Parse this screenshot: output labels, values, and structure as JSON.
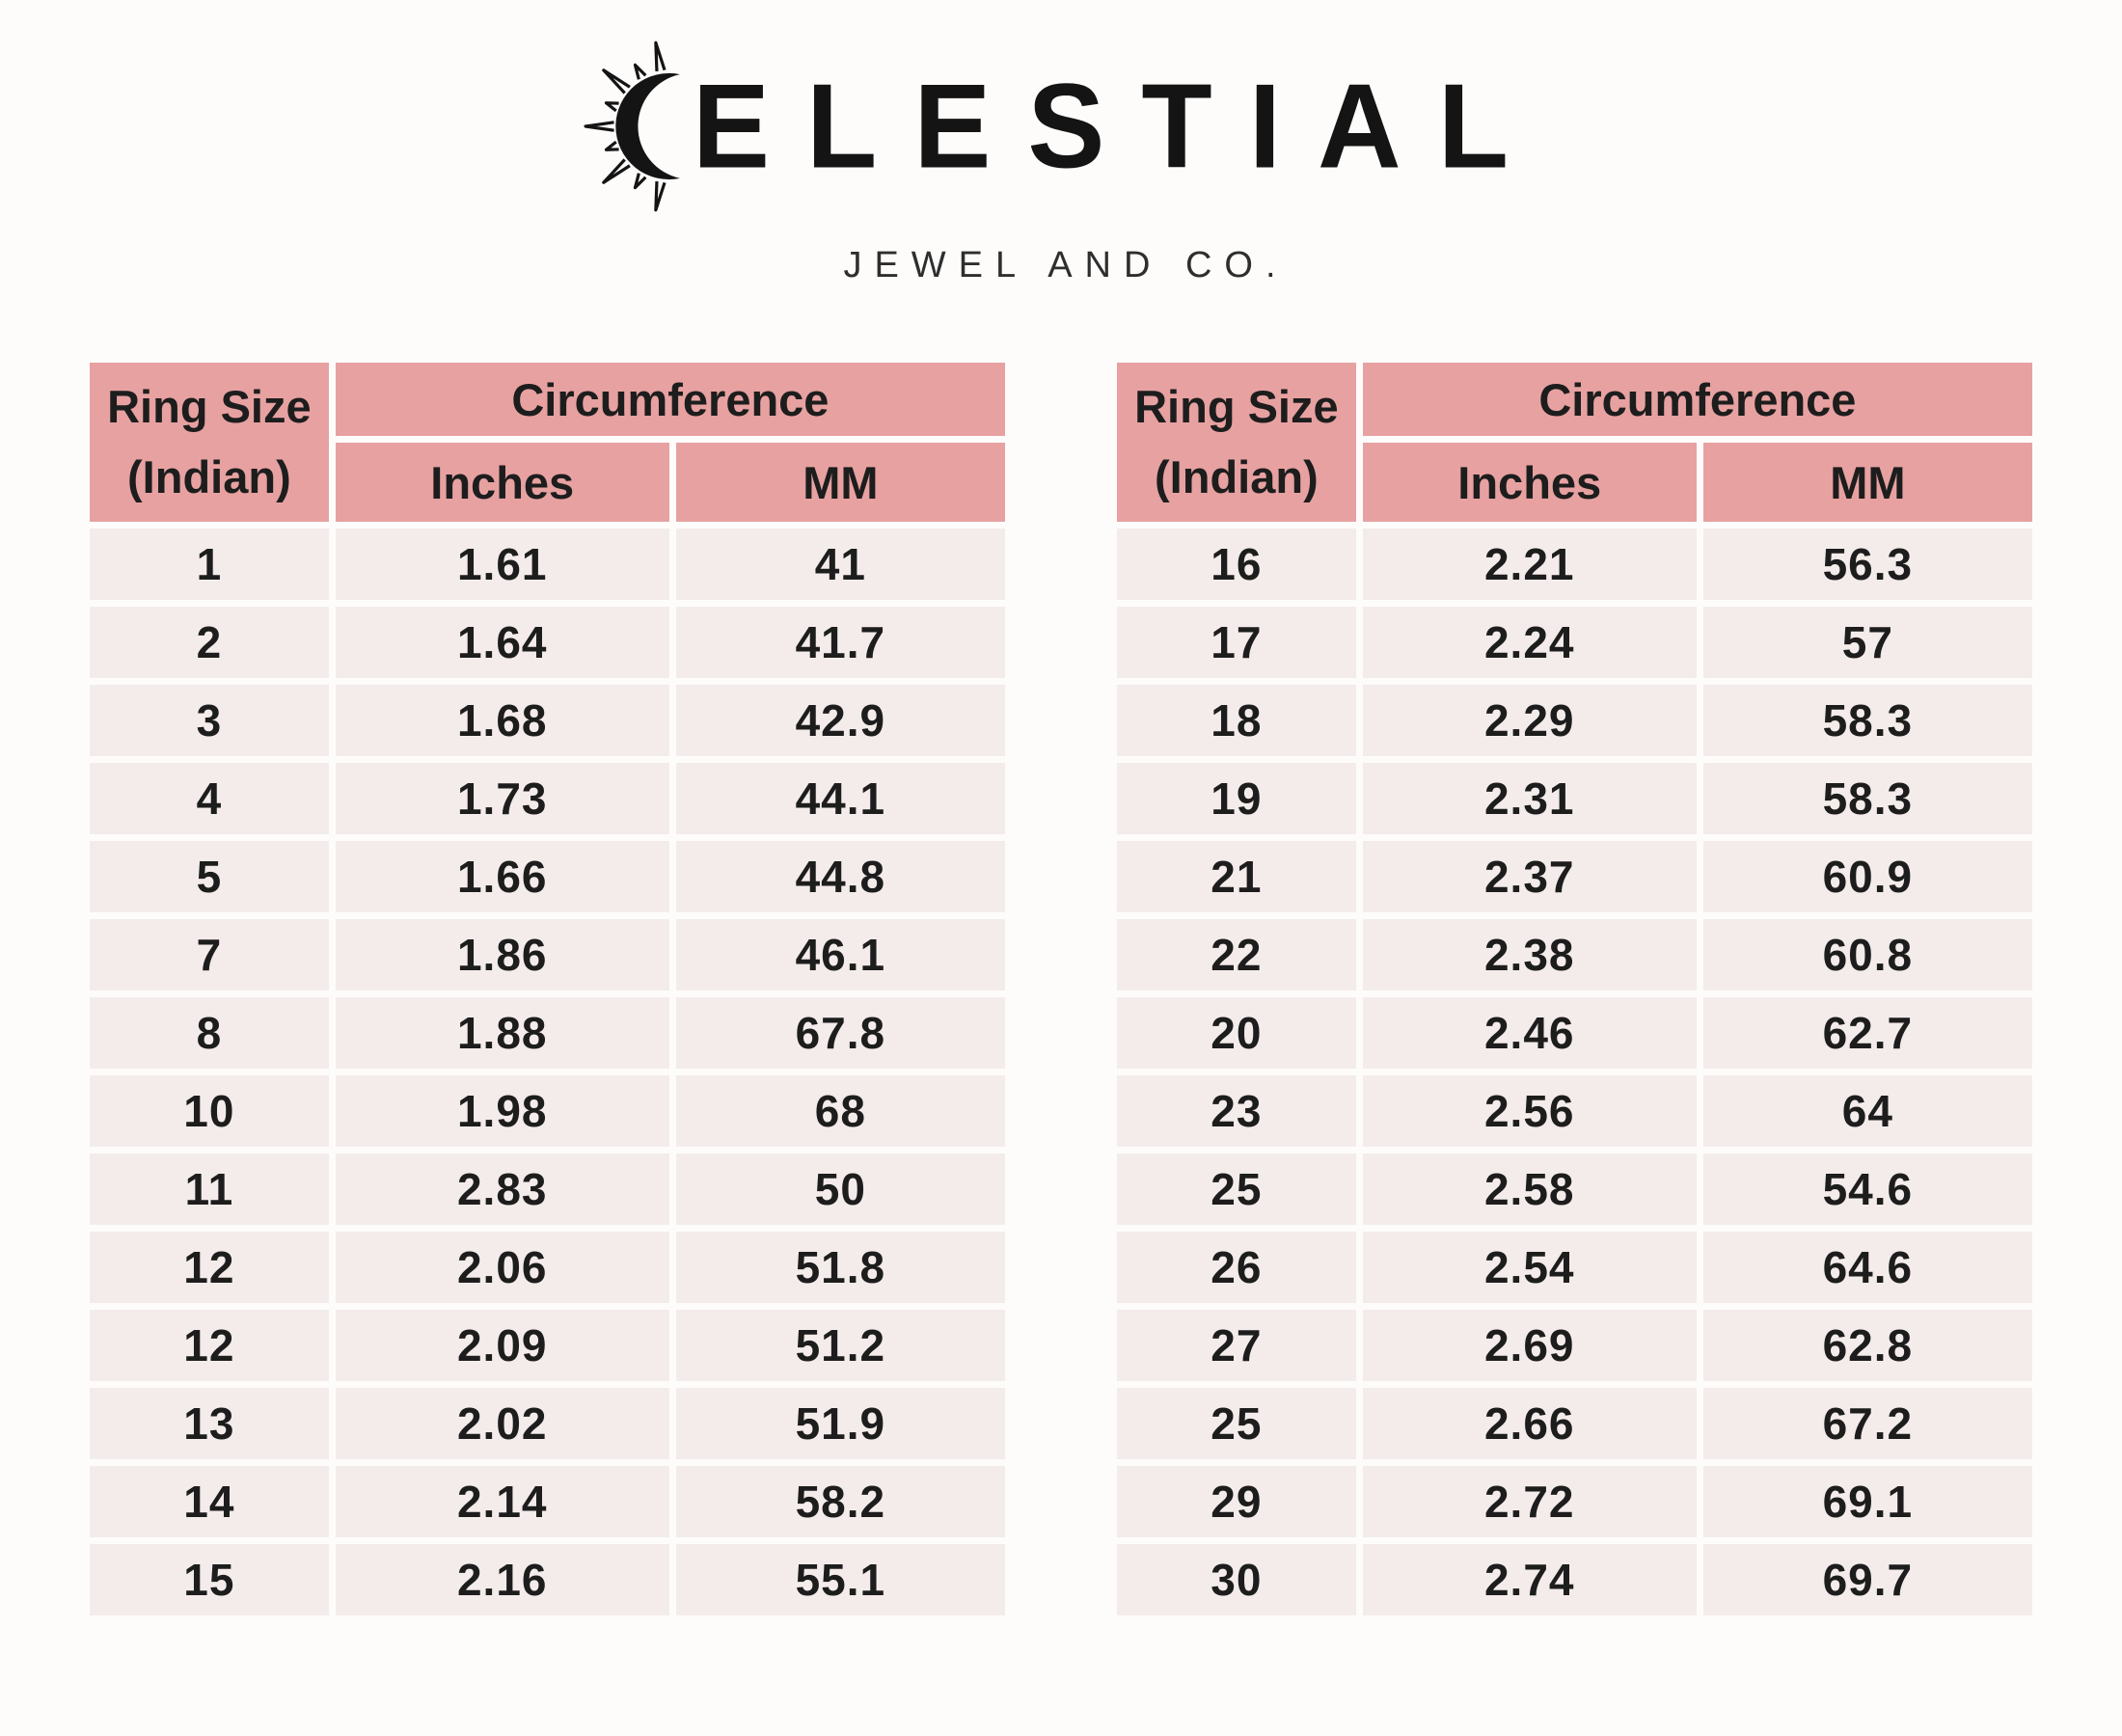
{
  "brand": {
    "wordmark": "CELESTIAL",
    "wordmark_visible_text": "ELESTIAL",
    "subtitle": "JEWEL AND CO.",
    "logo_icon": "sun-crescent-icon"
  },
  "tables": [
    {
      "id": "left",
      "header": {
        "ring_size_line1": "Ring Size",
        "ring_size_line2": "(Indian)",
        "circumference": "Circumference",
        "inches": "Inches",
        "mm": "MM"
      },
      "rows": [
        [
          "1",
          "1.61",
          "41"
        ],
        [
          "2",
          "1.64",
          "41.7"
        ],
        [
          "3",
          "1.68",
          "42.9"
        ],
        [
          "4",
          "1.73",
          "44.1"
        ],
        [
          "5",
          "1.66",
          "44.8"
        ],
        [
          "7",
          "1.86",
          "46.1"
        ],
        [
          "8",
          "1.88",
          "67.8"
        ],
        [
          "10",
          "1.98",
          "68"
        ],
        [
          "11",
          "2.83",
          "50"
        ],
        [
          "12",
          "2.06",
          "51.8"
        ],
        [
          "12",
          "2.09",
          "51.2"
        ],
        [
          "13",
          "2.02",
          "51.9"
        ],
        [
          "14",
          "2.14",
          "58.2"
        ],
        [
          "15",
          "2.16",
          "55.1"
        ]
      ]
    },
    {
      "id": "right",
      "header": {
        "ring_size_line1": "Ring Size",
        "ring_size_line2": "(Indian)",
        "circumference": "Circumference",
        "inches": "Inches",
        "mm": "MM"
      },
      "rows": [
        [
          "16",
          "2.21",
          "56.3"
        ],
        [
          "17",
          "2.24",
          "57"
        ],
        [
          "18",
          "2.29",
          "58.3"
        ],
        [
          "19",
          "2.31",
          "58.3"
        ],
        [
          "21",
          "2.37",
          "60.9"
        ],
        [
          "22",
          "2.38",
          "60.8"
        ],
        [
          "20",
          "2.46",
          "62.7"
        ],
        [
          "23",
          "2.56",
          "64"
        ],
        [
          "25",
          "2.58",
          "54.6"
        ],
        [
          "26",
          "2.54",
          "64.6"
        ],
        [
          "27",
          "2.69",
          "62.8"
        ],
        [
          "25",
          "2.66",
          "67.2"
        ],
        [
          "29",
          "2.72",
          "69.1"
        ],
        [
          "30",
          "2.74",
          "69.7"
        ]
      ]
    }
  ],
  "colors": {
    "header_bg": "#e7a1a1",
    "row_bg": "#f4ecea",
    "text": "#1d1d1d",
    "page_bg": "#fdfcfb"
  }
}
